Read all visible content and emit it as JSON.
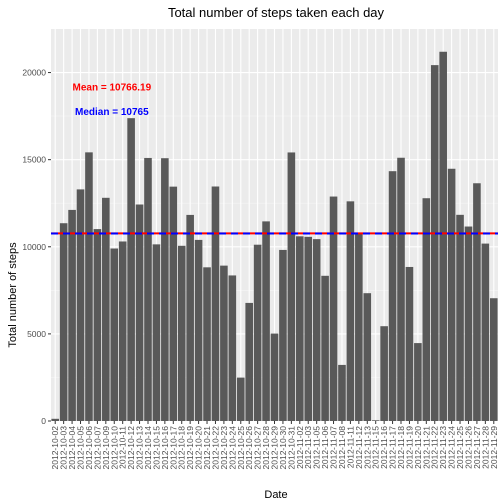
{
  "chart_data": {
    "type": "bar",
    "title": "Total number of steps taken each day",
    "xlabel": "Date",
    "ylabel": "Total number of steps",
    "ylim": [
      0,
      22500
    ],
    "yticks": [
      0,
      5000,
      10000,
      15000,
      20000
    ],
    "grid": true,
    "categories": [
      "2012-10-02",
      "2012-10-03",
      "2012-10-04",
      "2012-10-05",
      "2012-10-06",
      "2012-10-07",
      "2012-10-09",
      "2012-10-10",
      "2012-10-11",
      "2012-10-12",
      "2012-10-13",
      "2012-10-14",
      "2012-10-15",
      "2012-10-16",
      "2012-10-17",
      "2012-10-18",
      "2012-10-19",
      "2012-10-20",
      "2012-10-21",
      "2012-10-22",
      "2012-10-23",
      "2012-10-24",
      "2012-10-25",
      "2012-10-26",
      "2012-10-27",
      "2012-10-28",
      "2012-10-29",
      "2012-10-30",
      "2012-10-31",
      "2012-11-02",
      "2012-11-03",
      "2012-11-05",
      "2012-11-06",
      "2012-11-07",
      "2012-11-08",
      "2012-11-11",
      "2012-11-12",
      "2012-11-13",
      "2012-11-15",
      "2012-11-16",
      "2012-11-17",
      "2012-11-18",
      "2012-11-19",
      "2012-11-20",
      "2012-11-21",
      "2012-11-22",
      "2012-11-23",
      "2012-11-24",
      "2012-11-25",
      "2012-11-26",
      "2012-11-27",
      "2012-11-28",
      "2012-11-29"
    ],
    "x_tick_labels": [
      "2012-10-02",
      "2012-10-03",
      "2012-10-04",
      "2012-10-05",
      "2012-10-06",
      "2012-10-07",
      "2012-10-09",
      "2012-10-10",
      "2012-10-11",
      "2012-10-12",
      "2012-10-13",
      "2012-10-14",
      "2012-10-15",
      "2012-10-16",
      "2012-10-17",
      "2012-10-18",
      "2012-10-19",
      "2012-10-20",
      "2012-10-21",
      "2012-10-22",
      "2012-10-23",
      "2012-10-24",
      "2012-10-25",
      "2012-10-26",
      "2012-10-27",
      "2012-10-28",
      "2012-10-29",
      "2012-10-30",
      "2012-10-31",
      "2012-11-02",
      "2012-11-03",
      "2012-11-05",
      "2012-11-06",
      "2012-11-07",
      "2012-11-08",
      "2012-11-11",
      "2012-11-12",
      "2012-11-13",
      "2012-11-15",
      "2012-11-16",
      "2012-11-17",
      "2012-11-18",
      "2012-11-19",
      "2012-11-20",
      "2012-11-21",
      "2012-11-22",
      "2012-11-23",
      "2012-11-24",
      "2012-11-25",
      "2012-11-26",
      "2012-11-27",
      "2012-11-28",
      "2012-11-29"
    ],
    "values": [
      126,
      11352,
      12116,
      13294,
      15420,
      11015,
      12811,
      9900,
      10304,
      17382,
      12426,
      15098,
      10139,
      15084,
      13452,
      10056,
      11829,
      10395,
      8821,
      13460,
      8918,
      8355,
      2492,
      6778,
      10119,
      11458,
      5018,
      9819,
      15414,
      10600,
      10571,
      10439,
      8334,
      12883,
      3219,
      12608,
      10765,
      7336,
      41,
      5441,
      14339,
      15110,
      8841,
      4472,
      12787,
      20427,
      21194,
      14478,
      11834,
      11162,
      13646,
      10183,
      7047
    ],
    "bar_color": "#595959",
    "annotations": [
      {
        "text": "Mean = 10766.19",
        "color": "#ff0000",
        "x_index": 6,
        "y": 19200
      },
      {
        "text": "Median = 10765",
        "color": "#0000ff",
        "x_index": 6,
        "y": 17800
      }
    ],
    "reference_lines": [
      {
        "name": "Mean",
        "value": 10766.19,
        "color": "#ff0000",
        "style": "solid"
      },
      {
        "name": "Median",
        "value": 10765,
        "color": "#0000ff",
        "style": "dashed"
      }
    ]
  }
}
